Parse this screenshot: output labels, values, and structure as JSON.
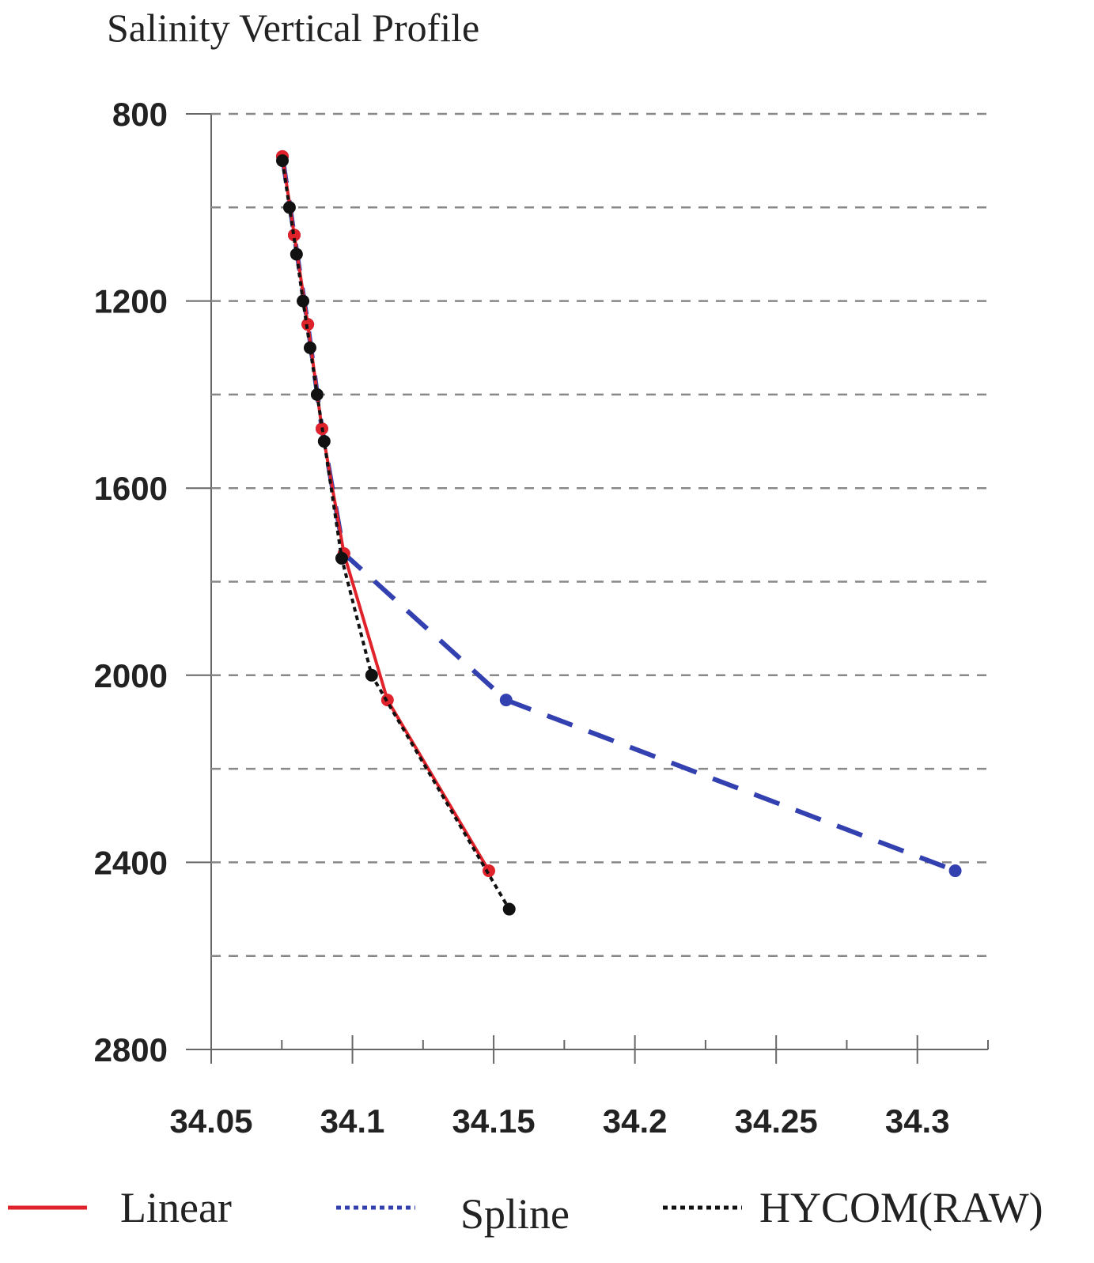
{
  "chart_data": {
    "type": "line",
    "title": "Salinity Vertical Profile",
    "xlim": [
      34.05,
      34.325
    ],
    "xticks": [
      34.05,
      34.1,
      34.15,
      34.2,
      34.25,
      34.3
    ],
    "xminorticks": [
      34.075,
      34.125,
      34.175,
      34.225,
      34.275,
      34.325
    ],
    "ylim": [
      800,
      2800
    ],
    "yticks": [
      800,
      1200,
      1600,
      2000,
      2400,
      2800
    ],
    "grid_lines": [
      800,
      1000,
      1200,
      1400,
      1600,
      1800,
      2000,
      2200,
      2400,
      2600
    ],
    "y_inverted": true,
    "grid": true,
    "legend": "bottom",
    "series": [
      {
        "name": "Spline",
        "color": "#3340b0",
        "dash": "dashed",
        "legend_dash": "dotted",
        "x": [
          34.0752,
          34.0794,
          34.0842,
          34.0892,
          34.097,
          34.1544,
          34.3134
        ],
        "y": [
          891,
          1059,
          1250,
          1473,
          1740,
          2053,
          2418
        ]
      },
      {
        "name": "Linear",
        "color": "#e0232b",
        "dash": "solid",
        "legend_dash": "solid",
        "x": [
          34.0752,
          34.0794,
          34.0842,
          34.0892,
          34.097,
          34.1124,
          34.1483
        ],
        "y": [
          891,
          1059,
          1250,
          1473,
          1740,
          2053,
          2418
        ]
      },
      {
        "name": "HYCOM(RAW)",
        "color": "#111111",
        "dash": "dotted",
        "legend_dash": "dotted",
        "x": [
          34.0752,
          34.0777,
          34.0802,
          34.0825,
          34.085,
          34.0875,
          34.09,
          34.0962,
          34.1068,
          34.1555
        ],
        "y": [
          900,
          1000,
          1100,
          1200,
          1300,
          1400,
          1500,
          1750,
          2000,
          2500
        ]
      }
    ]
  }
}
